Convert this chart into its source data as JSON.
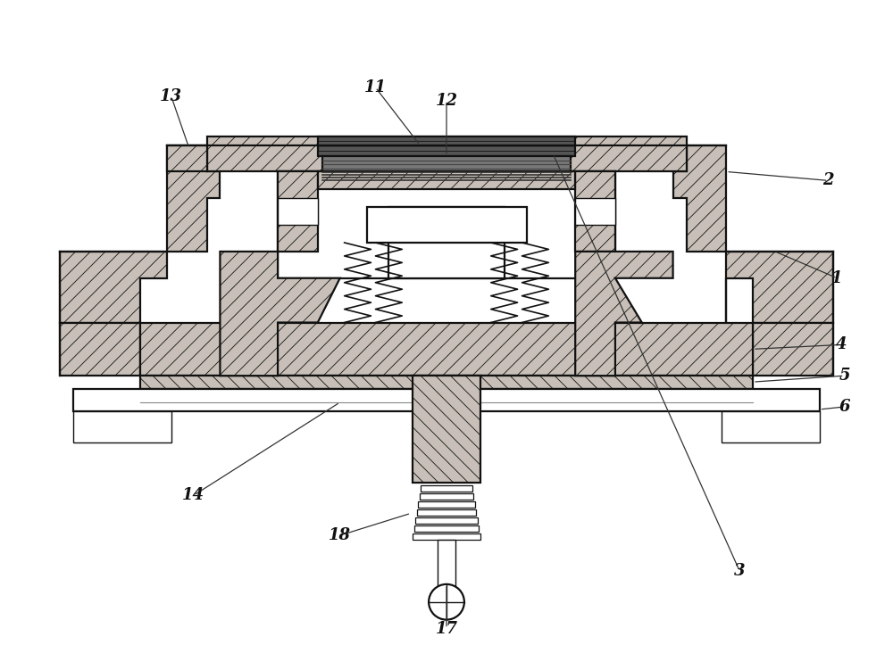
{
  "bg_color": "#ffffff",
  "line_color": "#111111",
  "fig_width": 10.0,
  "fig_height": 7.23,
  "hatch": "////",
  "gray": "#c8c0b8",
  "white": "#ffffff",
  "dark": "#333333"
}
